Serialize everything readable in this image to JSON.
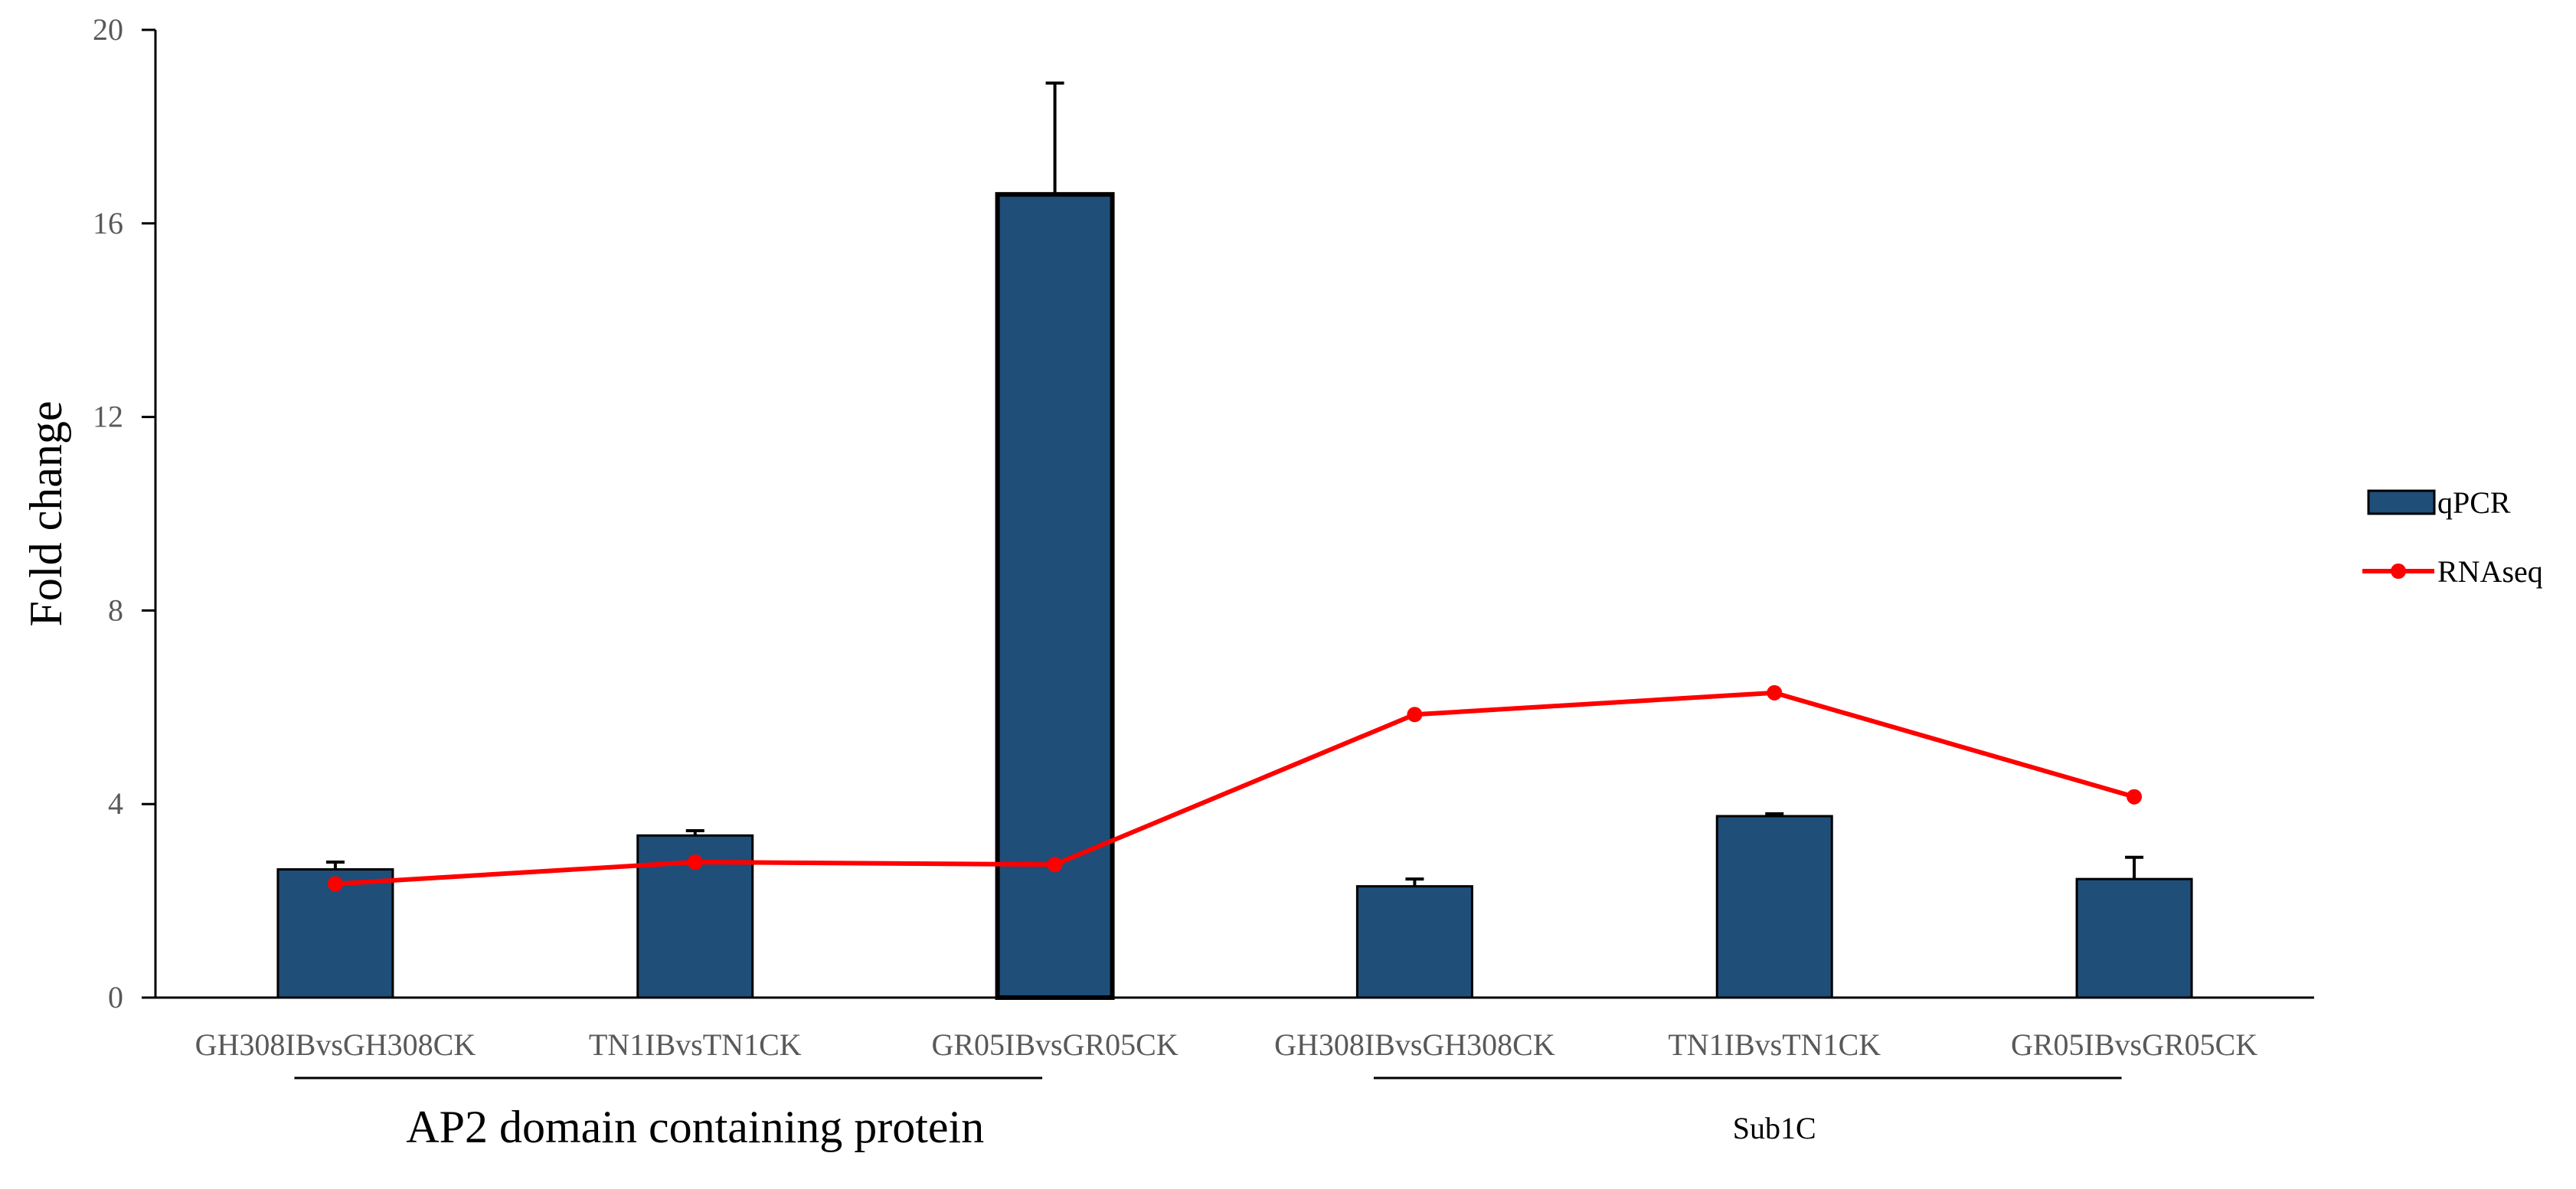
{
  "chart_data": {
    "type": "bar",
    "title": "",
    "xlabel": "",
    "ylabel": "Fold change",
    "ylim": [
      0,
      20
    ],
    "yticks": [
      0,
      4,
      8,
      12,
      16,
      20
    ],
    "grid": false,
    "legend_position": "right",
    "categories": [
      "GH308IBvsGH308CK",
      "TN1IBvsTN1CK",
      "GR05IBvsGR05CK",
      "GH308IBvsGH308CK",
      "TN1IBvsTN1CK",
      "GR05IBvsGR05CK"
    ],
    "groups": [
      {
        "label": "AP2 domain containing protein",
        "category_indices": [
          0,
          1,
          2
        ]
      },
      {
        "label": "Sub1C",
        "category_indices": [
          3,
          4,
          5
        ]
      }
    ],
    "series": [
      {
        "name": "qPCR",
        "kind": "bar",
        "color": "#1f4e79",
        "values": [
          2.65,
          3.35,
          16.6,
          2.3,
          3.75,
          2.45
        ],
        "errors": [
          0.15,
          0.1,
          2.3,
          0.15,
          0.05,
          0.45
        ]
      },
      {
        "name": "RNAseq",
        "kind": "line",
        "color": "#ff0000",
        "values": [
          2.35,
          2.8,
          2.75,
          5.85,
          6.3,
          4.15
        ]
      }
    ]
  }
}
